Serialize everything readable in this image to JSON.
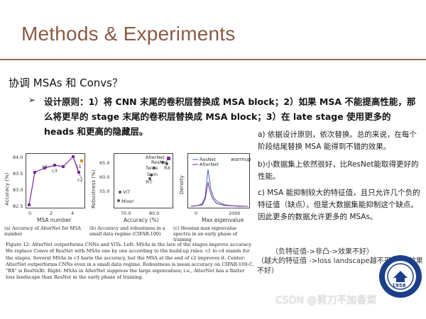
{
  "slide": {
    "title": "Methods & Experiments",
    "section": "协调 MSAs 和 Convs？",
    "bullet_marker": "➢",
    "bullet": "设计原则：1）将 CNN 末尾的卷积层替换成 MSA block；2）如果 MSA 不能提高性能，那么将更早的 stage 末尾的卷积层替换成 MSA block；3）在 late stage 使用更多的 heads 和更高的隐藏层。"
  },
  "right_column": {
    "a": "a) 依据设计原则，依次替换。总的来说，在每个阶段结尾替换 MSA 能得到不错的效果。",
    "b": "b)小数据集上依然很好，比ResNet能取得更好的性能。",
    "c": "c) MSA 能抑制较大的特征值，且只允许几个负的特征值（缺点）。但是大数据集能抑制这个缺点。因此更多的数据允许更多的 MSAs。",
    "note1": "（负特征值->非凸->效果不好）",
    "note2": "（越大的特征值 ->loss landscape越不平滑 ->效果不好）"
  },
  "figure": {
    "caption": "Figure 12: AlterNet outperforms CNNs and ViTs. Left: MSAs in the late of the stages improve accuracy. We replace Convs of ResNet with MSAs one by one according to the build-up rules. c1 to c4 stands for the stages. Several MSAs in c3 harm the accuracy, but the MSA at the end of c2 improves it. Center: AlterNet outperforms CNNs even in a small data regime. Robustness is mean accuracy on CIFAR-100-C. \"RX\" is ResNeXt. Right: MSAs in AlterNet suppress the large eigenvalues; i.e., AlterNet has a flatter loss landscape than ResNet in the early phase of training.",
    "sub_a": "(a) Accuracy of AlterNet for MSA number",
    "sub_b": "(b) Accuracy and robustness in a small data regime (CIFAR-100)",
    "sub_c": "(c) Hessian max eigenvalue spectra in an early phase of training",
    "left_plot": {
      "ylabel": "Accuracy (%)",
      "xlabel": "MSA number",
      "yticks": [
        "84.0",
        "83.5",
        "83.0",
        "82.5"
      ],
      "xticks": [
        "0",
        "2",
        "4"
      ],
      "labels": [
        "c4",
        "c3",
        "c2",
        "c1"
      ]
    },
    "center_plot": {
      "ylabel": "Robustness (%)",
      "xlabel": "Accuracy (%)",
      "yticks": [
        "65.0",
        "60.0",
        "55.0"
      ],
      "xticks": [
        "70.0",
        "80.0"
      ],
      "labels": [
        "AlterNet",
        "ResNet",
        "RX",
        "Twins",
        "Swin",
        "PiT",
        "ViT",
        "Mixer"
      ]
    },
    "right_plot": {
      "ylabel": "Density",
      "xlabel": "Max eigenvalue",
      "xticks": [
        "0",
        "2000"
      ],
      "legend": [
        "ResNet",
        "AlterNet"
      ],
      "tag": "warmup"
    }
  },
  "watermark": "CSDN @剪刀不加香菜",
  "seal_text": "1958",
  "colors": {
    "title": "#8b5a44",
    "rule": "#9b6a52",
    "purple": "#7a2a9a",
    "orange": "#e58a2a",
    "blue": "#3a67b8"
  }
}
